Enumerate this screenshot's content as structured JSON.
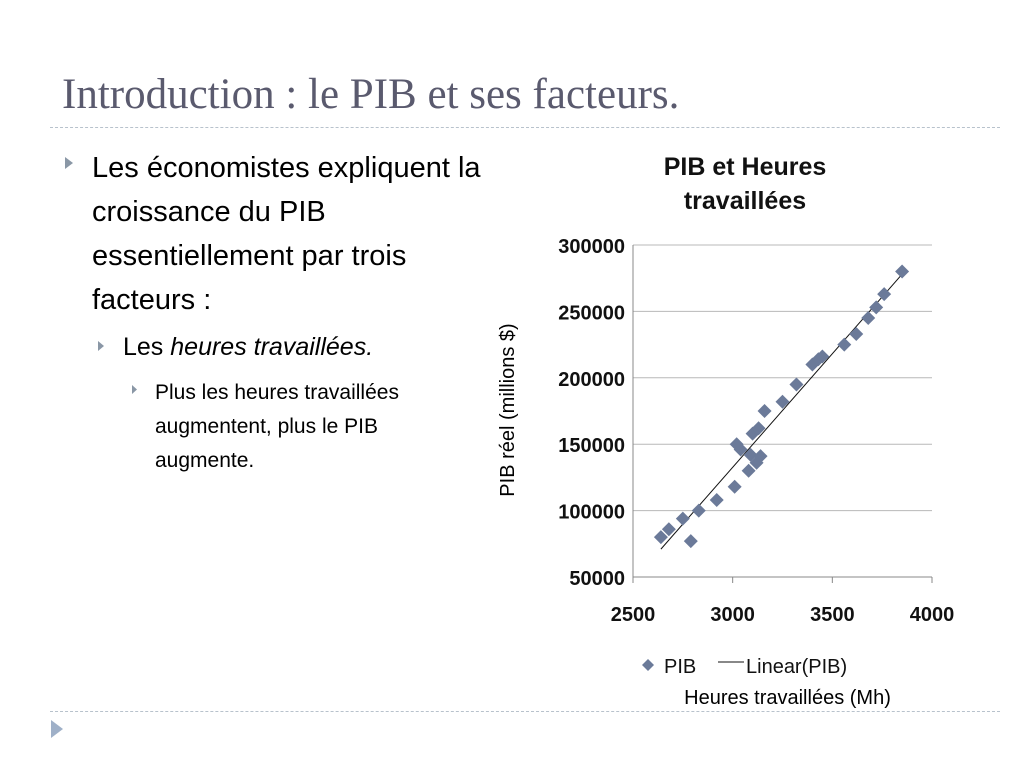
{
  "slide": {
    "title": "Introduction : le PIB et ses facteurs.",
    "bullet1": "Les économistes expliquent la croissance du PIB essentiellement par trois facteurs :",
    "bullet2_prefix": "Les ",
    "bullet2_italic": "heures travaillées.",
    "bullet3": "Plus les heures travaillées augmentent, plus le PIB augmente."
  },
  "colors": {
    "title": "#5a5a6e",
    "bullet": "#8a97a6",
    "rule": "#b8c2cc",
    "marker": "#6b7a99",
    "grid": "#b8b8b8"
  },
  "chart_data": {
    "type": "scatter",
    "title": "PIB et Heures travaillées",
    "xlabel": "Heures travaillées (Mh)",
    "ylabel": "PIB réel (millions $)",
    "xlim": [
      2500,
      4000
    ],
    "ylim": [
      50000,
      300000
    ],
    "xticks": [
      2500,
      3000,
      3500,
      4000
    ],
    "yticks": [
      50000,
      100000,
      150000,
      200000,
      250000,
      300000
    ],
    "grid": "horizontal",
    "legend": {
      "position": "bottom",
      "entries": [
        "PIB",
        "Linear(PIB)"
      ]
    },
    "series": [
      {
        "name": "PIB",
        "x": [
          2640,
          2680,
          2750,
          2790,
          2830,
          2920,
          3010,
          3020,
          3040,
          3080,
          3090,
          3100,
          3120,
          3130,
          3140,
          3160,
          3250,
          3320,
          3400,
          3430,
          3450,
          3560,
          3620,
          3680,
          3720,
          3760,
          3850
        ],
        "y": [
          80000,
          86000,
          94000,
          77000,
          100000,
          108000,
          118000,
          150000,
          146000,
          130000,
          142000,
          158000,
          136000,
          162000,
          141000,
          175000,
          182000,
          195000,
          210000,
          214000,
          216000,
          225000,
          233000,
          245000,
          253000,
          263000,
          280000
        ]
      },
      {
        "name": "Linear(PIB)",
        "type": "line",
        "x": [
          2640,
          3850
        ],
        "y": [
          71000,
          278000
        ]
      }
    ]
  }
}
